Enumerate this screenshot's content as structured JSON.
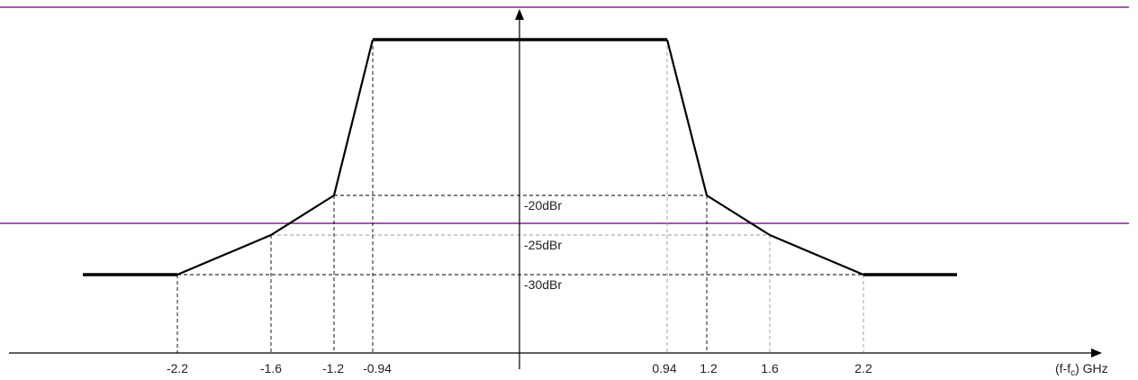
{
  "chart_data": {
    "type": "line",
    "xlabel_prefix": "(f-f",
    "xlabel_sub": "c",
    "xlabel_suffix": ") GHz",
    "x_ticks": [
      {
        "id": "m2_2",
        "label": "-2.2",
        "value": -2.2
      },
      {
        "id": "m1_6",
        "label": "-1.6",
        "value": -1.6
      },
      {
        "id": "m1_2",
        "label": "-1.2",
        "value": -1.2
      },
      {
        "id": "m0_94",
        "label": "-0.94",
        "value": -0.94
      },
      {
        "id": "p0_94",
        "label": "0.94",
        "value": 0.94
      },
      {
        "id": "p1_2",
        "label": "1.2",
        "value": 1.2
      },
      {
        "id": "p1_6",
        "label": "1.6",
        "value": 1.6
      },
      {
        "id": "p2_2",
        "label": "2.2",
        "value": 2.2
      }
    ],
    "y_levels": [
      {
        "id": "l20",
        "label": "-20dBr",
        "value": -20
      },
      {
        "id": "l25",
        "label": "-25dBr",
        "value": -25
      },
      {
        "id": "l30",
        "label": "-30dBr",
        "value": -30
      }
    ],
    "mask": [
      {
        "x": -2.8,
        "y": -30
      },
      {
        "x": -2.2,
        "y": -30
      },
      {
        "x": -1.6,
        "y": -25
      },
      {
        "x": -1.2,
        "y": -20
      },
      {
        "x": -0.94,
        "y": 0
      },
      {
        "x": 0.94,
        "y": 0
      },
      {
        "x": 1.2,
        "y": -20
      },
      {
        "x": 1.6,
        "y": -25
      },
      {
        "x": 2.2,
        "y": -30
      },
      {
        "x": 2.8,
        "y": -30
      }
    ]
  }
}
